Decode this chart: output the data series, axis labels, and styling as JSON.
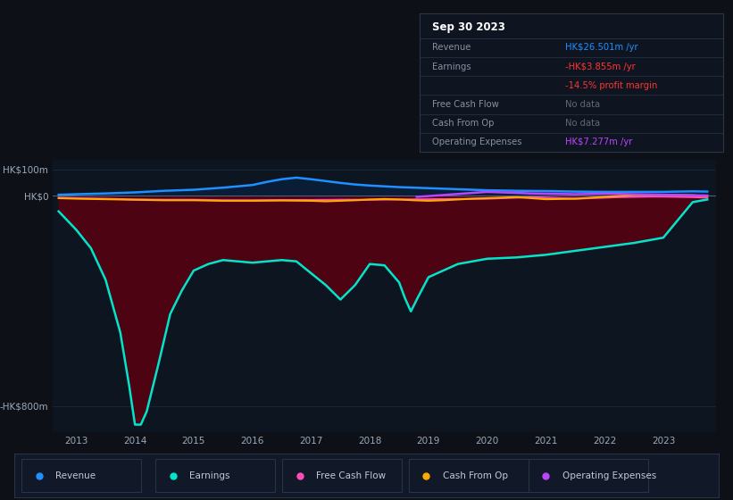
{
  "bg_color": "#0d1117",
  "chart_bg": "#0d1520",
  "grid_color": "#1a2535",
  "text_color": "#9aaabb",
  "x_min": 2012.6,
  "x_max": 2023.9,
  "y_min": -900,
  "y_max": 135,
  "y_label_100": "HK$100m",
  "y_label_0": "HK$0",
  "y_label_neg800": "-HK$800m",
  "revenue_color": "#1e90ff",
  "earnings_color": "#00e5cc",
  "fcf_color": "#ff4db8",
  "cfo_color": "#ffaa00",
  "opex_color": "#bb44ff",
  "fill_revenue_color": "#0a2040",
  "fill_earnings_color": "#5a0010",
  "revenue_x": [
    2012.7,
    2013.0,
    2013.5,
    2014.0,
    2014.5,
    2015.0,
    2015.5,
    2016.0,
    2016.25,
    2016.5,
    2016.75,
    2017.0,
    2017.25,
    2017.5,
    2017.75,
    2018.0,
    2018.25,
    2018.5,
    2018.75,
    2019.0,
    2019.25,
    2019.5,
    2019.75,
    2020.0,
    2020.5,
    2021.0,
    2021.5,
    2022.0,
    2022.5,
    2023.0,
    2023.5,
    2023.75
  ],
  "revenue_y": [
    3,
    5,
    8,
    12,
    18,
    22,
    30,
    40,
    52,
    62,
    68,
    62,
    55,
    48,
    42,
    38,
    35,
    32,
    30,
    28,
    26,
    24,
    22,
    20,
    18,
    17,
    15,
    14,
    14,
    14,
    16,
    15
  ],
  "earnings_x": [
    2012.7,
    2013.0,
    2013.25,
    2013.5,
    2013.75,
    2013.9,
    2014.0,
    2014.1,
    2014.2,
    2014.4,
    2014.6,
    2014.8,
    2015.0,
    2015.25,
    2015.5,
    2015.75,
    2016.0,
    2016.25,
    2016.5,
    2016.75,
    2017.0,
    2017.25,
    2017.5,
    2017.75,
    2018.0,
    2018.25,
    2018.5,
    2018.6,
    2018.7,
    2018.8,
    2019.0,
    2019.25,
    2019.5,
    2019.75,
    2020.0,
    2020.5,
    2021.0,
    2021.5,
    2022.0,
    2022.5,
    2023.0,
    2023.5,
    2023.75
  ],
  "earnings_y": [
    -60,
    -130,
    -200,
    -320,
    -520,
    -720,
    -870,
    -870,
    -820,
    -640,
    -450,
    -360,
    -285,
    -260,
    -245,
    -250,
    -255,
    -250,
    -245,
    -250,
    -295,
    -340,
    -395,
    -340,
    -260,
    -265,
    -330,
    -390,
    -440,
    -395,
    -310,
    -285,
    -260,
    -250,
    -240,
    -235,
    -225,
    -210,
    -195,
    -180,
    -160,
    -25,
    -15
  ],
  "fcf_x": [
    2012.7,
    2013.0,
    2013.5,
    2014.0,
    2014.5,
    2015.0,
    2015.5,
    2016.0,
    2016.5,
    2017.0,
    2017.5,
    2018.0,
    2018.5,
    2019.0,
    2019.5,
    2020.0,
    2020.25,
    2020.5,
    2020.75,
    2021.0,
    2021.25,
    2021.5,
    2021.75,
    2022.0,
    2022.25,
    2022.5,
    2022.75,
    2023.0,
    2023.5,
    2023.75
  ],
  "fcf_y": [
    -8,
    -10,
    -12,
    -15,
    -16,
    -16,
    -18,
    -18,
    -17,
    -17,
    -16,
    -16,
    -15,
    -14,
    -13,
    -12,
    -10,
    -8,
    -6,
    -8,
    -10,
    -12,
    -10,
    -8,
    -6,
    -5,
    -4,
    -4,
    -6,
    -8
  ],
  "cfo_x": [
    2012.7,
    2013.0,
    2013.5,
    2014.0,
    2014.5,
    2015.0,
    2015.5,
    2016.0,
    2016.5,
    2017.0,
    2017.25,
    2017.5,
    2017.75,
    2018.0,
    2018.25,
    2018.5,
    2018.75,
    2019.0,
    2019.25,
    2019.5,
    2019.75,
    2020.0,
    2020.25,
    2020.5,
    2020.75,
    2021.0,
    2021.5,
    2022.0,
    2022.5,
    2023.0,
    2023.5,
    2023.75
  ],
  "cfo_y": [
    -10,
    -12,
    -14,
    -16,
    -18,
    -18,
    -20,
    -20,
    -19,
    -20,
    -22,
    -20,
    -18,
    -15,
    -13,
    -15,
    -18,
    -20,
    -18,
    -15,
    -12,
    -10,
    -8,
    -6,
    -10,
    -14,
    -12,
    -5,
    2,
    3,
    1,
    -2
  ],
  "opex_x": [
    2018.8,
    2019.0,
    2019.25,
    2019.5,
    2019.75,
    2020.0,
    2020.25,
    2020.5,
    2020.75,
    2021.0,
    2021.25,
    2021.5,
    2021.75,
    2022.0,
    2022.25,
    2022.5,
    2022.75,
    2023.0,
    2023.25,
    2023.5,
    2023.75
  ],
  "opex_y": [
    -5,
    -2,
    2,
    6,
    10,
    14,
    12,
    10,
    8,
    7,
    6,
    5,
    6,
    7,
    6,
    5,
    4,
    3,
    2,
    1,
    0
  ],
  "legend_items": [
    "Revenue",
    "Earnings",
    "Free Cash Flow",
    "Cash From Op",
    "Operating Expenses"
  ],
  "legend_colors": [
    "#1e90ff",
    "#00e5cc",
    "#ff4db8",
    "#ffaa00",
    "#bb44ff"
  ],
  "info_date": "Sep 30 2023",
  "info_rows": [
    {
      "label": "Revenue",
      "value": "HK$26.501m /yr",
      "lcolor": "#888fa0",
      "vcolor": "#1e90ff"
    },
    {
      "label": "Earnings",
      "value": "-HK$3.855m /yr",
      "lcolor": "#888fa0",
      "vcolor": "#ff3333"
    },
    {
      "label": "",
      "value": "-14.5% profit margin",
      "lcolor": "#888fa0",
      "vcolor": "#ff3333"
    },
    {
      "label": "Free Cash Flow",
      "value": "No data",
      "lcolor": "#888fa0",
      "vcolor": "#606878"
    },
    {
      "label": "Cash From Op",
      "value": "No data",
      "lcolor": "#888fa0",
      "vcolor": "#606878"
    },
    {
      "label": "Operating Expenses",
      "value": "HK$7.277m /yr",
      "lcolor": "#888fa0",
      "vcolor": "#bb44ff"
    }
  ]
}
